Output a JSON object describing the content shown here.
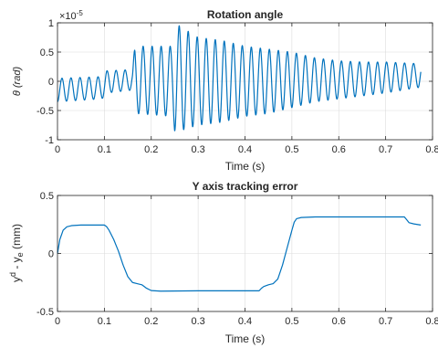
{
  "colors": {
    "series": "#0072BD",
    "axis": "#262626",
    "grid": "#dcdcdc"
  },
  "chart_data": [
    {
      "type": "line",
      "title": "Rotation angle",
      "xlabel": "Time (s)",
      "ylabel": "θ (rad)",
      "exponent_label": "×10",
      "exponent_power": "-5",
      "xlim": [
        0,
        0.8
      ],
      "ylim": [
        -1,
        1
      ],
      "xticks": [
        0,
        0.1,
        0.2,
        0.3,
        0.4,
        0.5,
        0.6,
        0.7,
        0.8
      ],
      "xtick_labels": [
        "0",
        "0.1",
        "0.2",
        "0.3",
        "0.4",
        "0.5",
        "0.6",
        "0.7",
        "0.8"
      ],
      "yticks": [
        -1,
        -0.5,
        0,
        0.5,
        1
      ],
      "ytick_labels": [
        "-1",
        "-0.5",
        "0",
        "0.5",
        "1"
      ],
      "grid": true,
      "series": [
        {
          "style": "oscillation",
          "frequency_hz": 52,
          "x_end": 0.775,
          "envelope_t": [
            0,
            0.095,
            0.105,
            0.16,
            0.165,
            0.245,
            0.25,
            0.26,
            0.3,
            0.35,
            0.4,
            0.45,
            0.5,
            0.55,
            0.6,
            0.65,
            0.7,
            0.775
          ],
          "envelope_upper": [
            0.05,
            0.08,
            0.18,
            0.2,
            0.6,
            0.6,
            0.95,
            0.95,
            0.75,
            0.7,
            0.6,
            0.55,
            0.5,
            0.4,
            0.35,
            0.33,
            0.33,
            0.3
          ],
          "envelope_lower": [
            -0.35,
            -0.3,
            -0.2,
            -0.15,
            -0.55,
            -0.6,
            -0.85,
            -0.85,
            -0.75,
            -0.7,
            -0.6,
            -0.55,
            -0.45,
            -0.35,
            -0.3,
            -0.25,
            -0.2,
            -0.1
          ]
        }
      ]
    },
    {
      "type": "line",
      "title": "Y axis tracking error",
      "xlabel": "Time (s)",
      "ylabel_main": "y",
      "ylabel_sup": "d",
      "ylabel_mid": " - y",
      "ylabel_sub": "e",
      "ylabel_unit": " (mm)",
      "xlim": [
        0,
        0.8
      ],
      "ylim": [
        -0.5,
        0.5
      ],
      "xticks": [
        0,
        0.1,
        0.2,
        0.3,
        0.4,
        0.5,
        0.6,
        0.7,
        0.8
      ],
      "xtick_labels": [
        "0",
        "0.1",
        "0.2",
        "0.3",
        "0.4",
        "0.5",
        "0.6",
        "0.7",
        "0.8"
      ],
      "yticks": [
        -0.5,
        0,
        0.5
      ],
      "ytick_labels": [
        "-0.5",
        "0",
        "0.5"
      ],
      "grid": true,
      "series": [
        {
          "x": [
            0,
            0.005,
            0.012,
            0.02,
            0.03,
            0.05,
            0.08,
            0.1,
            0.105,
            0.11,
            0.12,
            0.13,
            0.14,
            0.15,
            0.16,
            0.17,
            0.18,
            0.19,
            0.2,
            0.22,
            0.3,
            0.4,
            0.43,
            0.435,
            0.44,
            0.45,
            0.46,
            0.47,
            0.48,
            0.49,
            0.5,
            0.505,
            0.51,
            0.52,
            0.55,
            0.6,
            0.7,
            0.74,
            0.745,
            0.75,
            0.76,
            0.775
          ],
          "y": [
            0,
            0.12,
            0.2,
            0.23,
            0.24,
            0.245,
            0.245,
            0.245,
            0.23,
            0.2,
            0.12,
            0.02,
            -0.1,
            -0.2,
            -0.25,
            -0.26,
            -0.27,
            -0.3,
            -0.32,
            -0.325,
            -0.322,
            -0.322,
            -0.322,
            -0.3,
            -0.285,
            -0.27,
            -0.26,
            -0.22,
            -0.1,
            0.05,
            0.2,
            0.27,
            0.3,
            0.31,
            0.315,
            0.315,
            0.315,
            0.315,
            0.29,
            0.265,
            0.255,
            0.245
          ]
        }
      ]
    }
  ]
}
